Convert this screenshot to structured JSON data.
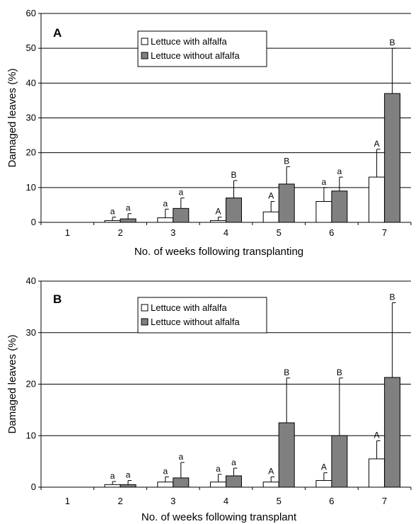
{
  "chart_data": [
    {
      "type": "bar",
      "panel_label": "A",
      "categories": [
        "1",
        "2",
        "3",
        "4",
        "5",
        "6",
        "7"
      ],
      "xlabel": "No. of weeks following transplanting",
      "ylabel": "Damaged leaves (%)",
      "ylim": [
        0,
        60
      ],
      "yticks": [
        "0",
        "10",
        "20",
        "30",
        "40",
        "50",
        "60"
      ],
      "grid": "horizontal",
      "legend_position": "top-center",
      "series": [
        {
          "name": "Lettuce with alfalfa",
          "color": "#ffffff",
          "values": [
            0,
            0.5,
            1.3,
            0.5,
            3,
            6,
            13
          ],
          "errors": [
            0,
            1,
            2.5,
            1,
            3,
            4,
            8
          ],
          "letters": [
            "",
            "a",
            "a",
            "A",
            "A",
            "a",
            "A"
          ]
        },
        {
          "name": "Lettuce without alfalfa",
          "color": "#808080",
          "values": [
            0,
            1,
            4,
            7,
            11,
            9,
            37
          ],
          "errors": [
            0,
            1.5,
            3,
            5,
            5,
            4,
            13
          ],
          "letters": [
            "",
            "a",
            "a",
            "B",
            "B",
            "a",
            "B"
          ]
        }
      ]
    },
    {
      "type": "bar",
      "panel_label": "B",
      "categories": [
        "1",
        "2",
        "3",
        "4",
        "5",
        "6",
        "7"
      ],
      "xlabel": "No. of weeks following transplant",
      "ylabel": "Damaged leaves (%)",
      "ylim": [
        0,
        40
      ],
      "yticks": [
        "0",
        "10",
        "20",
        "30",
        "40"
      ],
      "grid": "horizontal",
      "legend_position": "top-center",
      "series": [
        {
          "name": "Lettuce with alfalfa",
          "color": "#ffffff",
          "values": [
            0,
            0.5,
            1,
            1,
            1,
            1.3,
            5.5
          ],
          "errors": [
            0,
            0.6,
            1,
            1.5,
            1,
            1.5,
            3.5
          ],
          "letters": [
            "",
            "a",
            "a",
            "a",
            "A",
            "A",
            "A"
          ]
        },
        {
          "name": "Lettuce without alfalfa",
          "color": "#808080",
          "values": [
            0,
            0.5,
            1.8,
            2.2,
            12.5,
            10,
            21.3
          ],
          "errors": [
            0,
            0.8,
            3,
            1.5,
            8.7,
            11.2,
            14.5
          ],
          "letters": [
            "",
            "a",
            "a",
            "a",
            "B",
            "B",
            "B"
          ]
        }
      ]
    }
  ]
}
